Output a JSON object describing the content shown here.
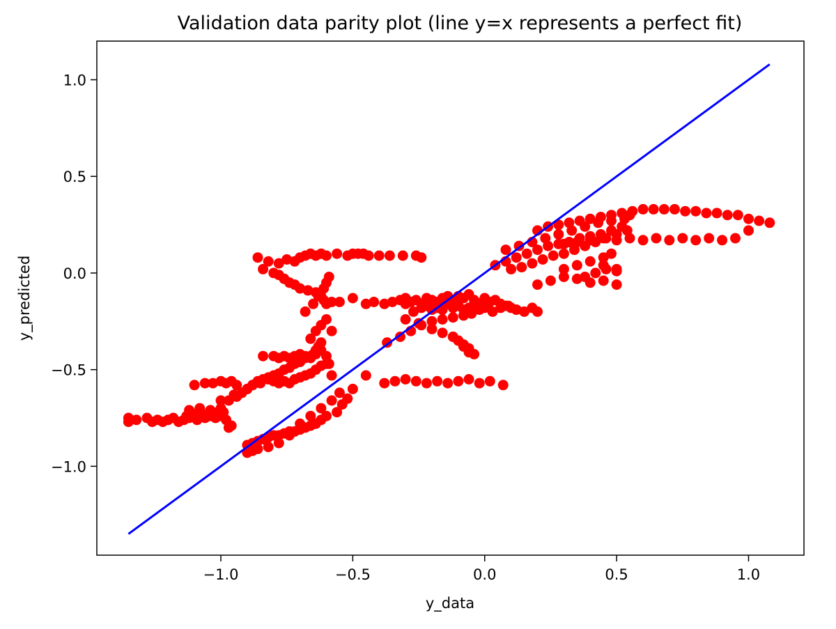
{
  "chart_data": {
    "type": "scatter",
    "title": "Validation data parity plot (line y=x represents a perfect fit)",
    "xlabel": "y_data",
    "ylabel": "y_predicted",
    "xlim": [
      -1.47,
      1.21
    ],
    "ylim": [
      -1.46,
      1.2
    ],
    "xticks": [
      -1.0,
      -0.5,
      0.0,
      0.5,
      1.0
    ],
    "xtick_labels": [
      "−1.0",
      "−0.5",
      "0.0",
      "0.5",
      "1.0"
    ],
    "yticks": [
      1.0,
      0.5,
      0.0,
      -0.5,
      -1.0
    ],
    "ytick_labels": [
      "1.0",
      "0.5",
      "0.0",
      "−0.5",
      "−1.0"
    ],
    "grid": false,
    "colors": {
      "points": "#ff0000",
      "fit_line": "#0000ff"
    },
    "series": [
      {
        "kind": "scatter",
        "x": [
          -1.35,
          -1.35,
          -1.32,
          -1.28,
          -1.26,
          -1.24,
          -1.22,
          -1.2,
          -1.18,
          -1.16,
          -1.14,
          -1.13,
          -1.12,
          -1.1,
          -1.09,
          -1.08,
          -1.06,
          -1.05,
          -1.04,
          -1.03,
          -1.02,
          -1.01,
          -1.0,
          -0.99,
          -0.98,
          -0.97,
          -0.96,
          -1.12,
          -1.08,
          -1.04,
          -1.0,
          -0.97,
          -0.94,
          -0.92,
          -0.9,
          -0.88,
          -0.86,
          -0.84,
          -0.82,
          -0.8,
          -0.78,
          -0.76,
          -0.74,
          -0.72,
          -0.7,
          -0.68,
          -0.66,
          -0.65,
          -0.64,
          -0.63,
          -0.62,
          -1.1,
          -1.06,
          -1.03,
          -1.0,
          -0.98,
          -0.96,
          -0.94,
          -1.0,
          -0.95,
          -0.9,
          -0.88,
          -0.85,
          -0.82,
          -0.8,
          -0.78,
          -0.76,
          -0.74,
          -0.72,
          -0.7,
          -0.68,
          -0.66,
          -0.64,
          -0.62,
          -0.6,
          -0.84,
          -0.8,
          -0.78,
          -0.76,
          -0.74,
          -0.72,
          -0.7,
          -0.68,
          -0.66,
          -0.64,
          -0.62,
          -0.6,
          -0.59,
          -0.58,
          -0.66,
          -0.64,
          -0.62,
          -0.6,
          -0.58,
          -0.68,
          -0.65,
          -0.63,
          -0.61,
          -0.6,
          -0.59,
          -0.86,
          -0.82,
          -0.78,
          -0.75,
          -0.72,
          -0.7,
          -0.68,
          -0.66,
          -0.64,
          -0.62,
          -0.6,
          -0.56,
          -0.52,
          -0.5,
          -0.48,
          -0.46,
          -0.44,
          -0.4,
          -0.36,
          -0.31,
          -0.26,
          -0.24,
          -0.84,
          -0.8,
          -0.78,
          -0.76,
          -0.74,
          -0.72,
          -0.7,
          -0.67,
          -0.64,
          -0.62,
          -0.61,
          -0.6,
          -0.58,
          -0.55,
          -0.5,
          -0.45,
          -0.42,
          -0.38,
          -0.35,
          -0.32,
          -0.3,
          -0.28,
          -0.26,
          -0.24,
          -0.22,
          -0.2,
          -0.18,
          -0.16,
          -0.14,
          -0.12,
          -0.1,
          -0.08,
          -0.06,
          -0.04,
          -0.02,
          0.0,
          0.02,
          0.04,
          0.06,
          0.08,
          0.1,
          0.12,
          -0.3,
          -0.27,
          -0.24,
          -0.22,
          -0.2,
          -0.18,
          -0.16,
          -0.14,
          -0.12,
          -0.1,
          -0.08,
          -0.06,
          -0.04,
          -0.02,
          0.0,
          0.03,
          0.06,
          0.09,
          0.12,
          0.15,
          0.18,
          0.2,
          -0.3,
          -0.25,
          -0.2,
          -0.16,
          -0.12,
          -0.1,
          -0.08,
          -0.06,
          -0.12,
          -0.1,
          -0.08,
          -0.06,
          -0.04,
          -0.38,
          -0.34,
          -0.3,
          -0.26,
          -0.22,
          -0.18,
          -0.14,
          -0.1,
          -0.06,
          -0.02,
          0.02,
          0.07,
          -0.37,
          -0.32,
          -0.28,
          -0.24,
          -0.2,
          -0.16,
          -0.12,
          -0.08,
          -0.05,
          -0.45,
          -0.5,
          -0.52,
          -0.54,
          -0.56,
          -0.6,
          -0.62,
          -0.64,
          -0.66,
          -0.68,
          -0.7,
          -0.72,
          -0.74,
          -0.76,
          -0.78,
          -0.8,
          -0.82,
          -0.84,
          -0.86,
          -0.88,
          -0.9,
          -0.55,
          -0.58,
          -0.62,
          -0.66,
          -0.7,
          -0.74,
          -0.78,
          -0.82,
          -0.86,
          -0.88,
          -0.9,
          0.2,
          0.24,
          0.28,
          0.32,
          0.36,
          0.4,
          0.44,
          0.48,
          0.52,
          0.56,
          0.6,
          0.64,
          0.68,
          0.72,
          0.76,
          0.8,
          0.84,
          0.88,
          0.92,
          0.96,
          1.0,
          1.04,
          1.08,
          0.3,
          0.35,
          0.4,
          0.45,
          0.5,
          0.55,
          0.6,
          0.65,
          0.7,
          0.75,
          0.8,
          0.85,
          0.9,
          0.95,
          1.0,
          0.04,
          0.08,
          0.12,
          0.16,
          0.2,
          0.24,
          0.28,
          0.32,
          0.36,
          0.4,
          0.44,
          0.48,
          0.52,
          0.1,
          0.14,
          0.18,
          0.22,
          0.26,
          0.3,
          0.34,
          0.38,
          0.42,
          0.46,
          0.5,
          0.54,
          0.08,
          0.13,
          0.18,
          0.23,
          0.28,
          0.33,
          0.38,
          0.43,
          0.48,
          0.53,
          0.55,
          0.2,
          0.25,
          0.3,
          0.35,
          0.4,
          0.45,
          0.5,
          0.3,
          0.35,
          0.4,
          0.45,
          0.5,
          0.38,
          0.42,
          0.46,
          0.5,
          0.45,
          0.48
        ],
        "y": [
          -0.77,
          -0.75,
          -0.76,
          -0.75,
          -0.77,
          -0.76,
          -0.77,
          -0.76,
          -0.75,
          -0.77,
          -0.76,
          -0.74,
          -0.75,
          -0.73,
          -0.76,
          -0.74,
          -0.75,
          -0.73,
          -0.74,
          -0.72,
          -0.75,
          -0.73,
          -0.74,
          -0.72,
          -0.76,
          -0.8,
          -0.79,
          -0.71,
          -0.7,
          -0.71,
          -0.7,
          -0.66,
          -0.64,
          -0.62,
          -0.6,
          -0.58,
          -0.56,
          -0.55,
          -0.54,
          -0.53,
          -0.52,
          -0.5,
          -0.49,
          -0.47,
          -0.46,
          -0.44,
          -0.43,
          -0.42,
          -0.4,
          -0.38,
          -0.36,
          -0.58,
          -0.57,
          -0.57,
          -0.56,
          -0.57,
          -0.56,
          -0.58,
          -0.66,
          -0.63,
          -0.6,
          -0.58,
          -0.57,
          -0.55,
          -0.56,
          -0.57,
          -0.56,
          -0.57,
          -0.55,
          -0.54,
          -0.53,
          -0.52,
          -0.5,
          -0.48,
          -0.47,
          -0.43,
          -0.43,
          -0.44,
          -0.43,
          -0.44,
          -0.43,
          -0.42,
          -0.43,
          -0.44,
          -0.42,
          -0.4,
          -0.43,
          -0.47,
          -0.53,
          -0.34,
          -0.3,
          -0.27,
          -0.24,
          -0.3,
          -0.2,
          -0.16,
          -0.12,
          -0.08,
          -0.05,
          -0.02,
          0.08,
          0.06,
          0.05,
          0.07,
          0.06,
          0.08,
          0.09,
          0.1,
          0.09,
          0.1,
          0.09,
          0.1,
          0.09,
          0.1,
          0.1,
          0.1,
          0.09,
          0.09,
          0.09,
          0.09,
          0.09,
          0.08,
          0.02,
          0.0,
          -0.01,
          -0.03,
          -0.05,
          -0.06,
          -0.08,
          -0.09,
          -0.1,
          -0.12,
          -0.14,
          -0.16,
          -0.15,
          -0.15,
          -0.13,
          -0.16,
          -0.15,
          -0.16,
          -0.15,
          -0.14,
          -0.13,
          -0.15,
          -0.14,
          -0.16,
          -0.13,
          -0.14,
          -0.15,
          -0.13,
          -0.12,
          -0.14,
          -0.12,
          -0.13,
          -0.11,
          -0.14,
          -0.16,
          -0.13,
          -0.15,
          -0.14,
          -0.16,
          -0.17,
          -0.18,
          -0.19,
          -0.16,
          -0.2,
          -0.18,
          -0.17,
          -0.19,
          -0.18,
          -0.19,
          -0.16,
          -0.18,
          -0.17,
          -0.19,
          -0.18,
          -0.17,
          -0.19,
          -0.18,
          -0.2,
          -0.18,
          -0.17,
          -0.19,
          -0.2,
          -0.18,
          -0.2,
          -0.24,
          -0.26,
          -0.29,
          -0.31,
          -0.33,
          -0.35,
          -0.38,
          -0.41,
          -0.33,
          -0.35,
          -0.37,
          -0.39,
          -0.42,
          -0.57,
          -0.56,
          -0.55,
          -0.56,
          -0.57,
          -0.56,
          -0.57,
          -0.56,
          -0.55,
          -0.57,
          -0.56,
          -0.58,
          -0.36,
          -0.33,
          -0.3,
          -0.27,
          -0.25,
          -0.24,
          -0.23,
          -0.22,
          -0.21,
          -0.53,
          -0.6,
          -0.65,
          -0.68,
          -0.72,
          -0.74,
          -0.76,
          -0.78,
          -0.79,
          -0.8,
          -0.81,
          -0.82,
          -0.82,
          -0.83,
          -0.84,
          -0.84,
          -0.85,
          -0.86,
          -0.87,
          -0.88,
          -0.89,
          -0.62,
          -0.66,
          -0.7,
          -0.74,
          -0.78,
          -0.84,
          -0.88,
          -0.9,
          -0.91,
          -0.92,
          -0.93,
          0.22,
          0.24,
          0.25,
          0.26,
          0.27,
          0.28,
          0.29,
          0.3,
          0.31,
          0.32,
          0.33,
          0.33,
          0.33,
          0.33,
          0.32,
          0.32,
          0.31,
          0.31,
          0.3,
          0.3,
          0.28,
          0.27,
          0.26,
          0.15,
          0.16,
          0.17,
          0.18,
          0.17,
          0.18,
          0.17,
          0.18,
          0.17,
          0.18,
          0.17,
          0.18,
          0.17,
          0.18,
          0.22,
          0.04,
          0.06,
          0.08,
          0.1,
          0.12,
          0.14,
          0.15,
          0.16,
          0.18,
          0.19,
          0.2,
          0.22,
          0.24,
          0.02,
          0.03,
          0.05,
          0.07,
          0.09,
          0.1,
          0.12,
          0.14,
          0.16,
          0.18,
          0.2,
          0.22,
          0.12,
          0.14,
          0.16,
          0.18,
          0.2,
          0.22,
          0.24,
          0.26,
          0.27,
          0.28,
          0.3,
          -0.06,
          -0.04,
          -0.02,
          -0.03,
          -0.05,
          -0.04,
          -0.06,
          0.02,
          0.04,
          0.06,
          0.04,
          0.02,
          -0.02,
          0.0,
          0.02,
          0.01,
          0.08,
          0.1
        ]
      },
      {
        "kind": "line",
        "x": [
          -1.35,
          1.08
        ],
        "y": [
          -1.35,
          1.08
        ]
      }
    ]
  }
}
